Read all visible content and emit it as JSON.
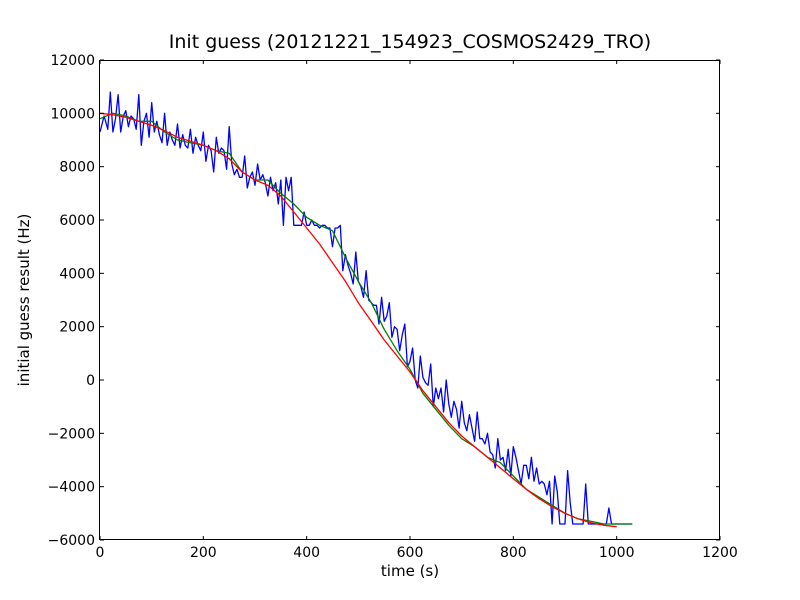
{
  "chart_data": {
    "type": "line",
    "title": "Init guess (20121221_154923_COSMOS2429_TRO)",
    "xlabel": "time (s)",
    "ylabel": "initial guess result (Hz)",
    "xlim": [
      0,
      1200
    ],
    "ylim": [
      -6000,
      12000
    ],
    "xticks": [
      0,
      200,
      400,
      600,
      800,
      1000,
      1200
    ],
    "yticks": [
      -6000,
      -4000,
      -2000,
      0,
      2000,
      4000,
      6000,
      8000,
      10000,
      12000
    ],
    "grid": false,
    "series": [
      {
        "color": "#0000ff",
        "x": [
          0,
          8,
          15,
          20,
          25,
          30,
          35,
          40,
          45,
          50,
          55,
          60,
          65,
          70,
          75,
          80,
          85,
          90,
          95,
          100,
          105,
          110,
          115,
          120,
          125,
          130,
          135,
          140,
          145,
          150,
          155,
          160,
          165,
          170,
          175,
          180,
          185,
          190,
          195,
          200,
          205,
          210,
          215,
          220,
          225,
          230,
          235,
          240,
          245,
          250,
          255,
          260,
          265,
          270,
          275,
          280,
          285,
          290,
          295,
          300,
          305,
          310,
          315,
          320,
          325,
          330,
          335,
          340,
          345,
          350,
          355,
          360,
          365,
          370,
          375,
          380,
          385,
          390,
          395,
          400,
          405,
          410,
          415,
          420,
          425,
          430,
          435,
          440,
          445,
          450,
          455,
          460,
          465,
          470,
          475,
          480,
          485,
          490,
          495,
          500,
          505,
          510,
          515,
          520,
          525,
          530,
          535,
          540,
          545,
          550,
          555,
          560,
          565,
          570,
          575,
          580,
          585,
          590,
          595,
          600,
          605,
          610,
          615,
          620,
          625,
          630,
          635,
          640,
          645,
          650,
          655,
          660,
          665,
          670,
          675,
          680,
          685,
          690,
          695,
          700,
          705,
          710,
          715,
          720,
          725,
          730,
          735,
          740,
          745,
          750,
          755,
          760,
          765,
          770,
          775,
          780,
          785,
          790,
          795,
          800,
          805,
          810,
          815,
          820,
          825,
          830,
          835,
          840,
          845,
          850,
          855,
          860,
          865,
          870,
          875,
          880,
          885,
          890,
          895,
          900,
          905,
          910,
          915,
          920,
          925,
          930,
          935,
          940,
          945,
          950,
          955,
          960,
          965,
          970,
          975,
          980,
          985,
          990,
          995,
          1000,
          1010,
          1020,
          1030
        ],
        "y": [
          9300,
          9900,
          9400,
          10800,
          9300,
          9800,
          10700,
          9300,
          9900,
          10100,
          9500,
          9900,
          9800,
          9400,
          10700,
          8800,
          9700,
          10000,
          9100,
          10400,
          9300,
          9700,
          9200,
          8900,
          10000,
          8800,
          9300,
          9000,
          8800,
          9600,
          8700,
          9200,
          8800,
          8700,
          9400,
          8500,
          9100,
          8800,
          8600,
          9300,
          8200,
          8800,
          8600,
          7800,
          9100,
          8500,
          8700,
          8600,
          7900,
          9500,
          8100,
          7700,
          7900,
          7600,
          7600,
          8400,
          7200,
          7600,
          7800,
          7300,
          8100,
          7500,
          7700,
          7400,
          6900,
          7600,
          7100,
          7400,
          6600,
          7500,
          5800,
          7600,
          7100,
          7600,
          5800,
          5800,
          5800,
          5800,
          6300,
          5800,
          5800,
          6000,
          5800,
          5800,
          5700,
          5800,
          5800,
          5700,
          5700,
          5000,
          5700,
          5700,
          5800,
          4100,
          4700,
          4300,
          4000,
          3600,
          4800,
          3700,
          3500,
          3100,
          4100,
          3000,
          2900,
          2800,
          2800,
          2100,
          3100,
          2200,
          2400,
          2900,
          1600,
          2000,
          1900,
          1100,
          1700,
          2100,
          500,
          700,
          1200,
          0,
          -300,
          900,
          100,
          -100,
          -200,
          600,
          -1000,
          -300,
          -700,
          -300,
          -1200,
          0,
          -900,
          -1400,
          -800,
          -1100,
          -1800,
          -800,
          -1600,
          -1900,
          -1300,
          -1800,
          -2300,
          -1200,
          -2200,
          -2200,
          -2400,
          -2000,
          -2700,
          -2800,
          -3300,
          -2200,
          -3000,
          -2900,
          -3400,
          -2600,
          -3600,
          -2500,
          -2900,
          -3400,
          -3900,
          -3200,
          -3200,
          -3700,
          -2900,
          -3800,
          -3300,
          -3900,
          -3800,
          -3900,
          -4300,
          -3800,
          -5400,
          -3600,
          -4200,
          -5400,
          -5400,
          -5400,
          -3400,
          -4600,
          -5400,
          -5400,
          -5400,
          -5400,
          -5400,
          -3900,
          -5400,
          -5400,
          -5400,
          -5400,
          -5400,
          -5400,
          -5400,
          -5400,
          -4800,
          -5400,
          -5400,
          -5400,
          -5400,
          -5400,
          -5400
        ]
      },
      {
        "color": "#008000",
        "x": [
          0,
          25,
          50,
          75,
          100,
          125,
          150,
          175,
          200,
          225,
          250,
          275,
          300,
          325,
          350,
          375,
          400,
          425,
          450,
          475,
          500,
          525,
          550,
          575,
          600,
          625,
          650,
          675,
          700,
          725,
          750,
          775,
          800,
          825,
          850,
          875,
          900,
          925,
          950,
          975,
          1000,
          1030
        ],
        "y": [
          9800,
          10000,
          9900,
          9700,
          9700,
          9300,
          9000,
          8900,
          8800,
          8600,
          8500,
          7800,
          7500,
          7500,
          7000,
          6600,
          6100,
          5800,
          5600,
          4600,
          3700,
          2900,
          1900,
          1100,
          400,
          -500,
          -1100,
          -1700,
          -2200,
          -2500,
          -2900,
          -3100,
          -3600,
          -4100,
          -4400,
          -4700,
          -5000,
          -5200,
          -5300,
          -5400,
          -5400,
          -5400
        ]
      },
      {
        "color": "#ff0000",
        "x": [
          0,
          25,
          50,
          75,
          100,
          125,
          150,
          175,
          200,
          225,
          250,
          275,
          300,
          325,
          350,
          375,
          400,
          425,
          450,
          475,
          500,
          525,
          550,
          575,
          600,
          625,
          650,
          675,
          700,
          725,
          750,
          775,
          800,
          825,
          850,
          875,
          900,
          925,
          950,
          975,
          1000
        ],
        "y": [
          10000,
          9950,
          9850,
          9700,
          9550,
          9350,
          9100,
          8950,
          8800,
          8600,
          8300,
          7800,
          7500,
          7300,
          6900,
          6300,
          5700,
          5100,
          4400,
          3700,
          2900,
          2200,
          1500,
          900,
          300,
          -400,
          -1000,
          -1600,
          -2100,
          -2500,
          -2900,
          -3300,
          -3700,
          -4100,
          -4450,
          -4750,
          -5000,
          -5200,
          -5350,
          -5450,
          -5500
        ]
      }
    ]
  }
}
